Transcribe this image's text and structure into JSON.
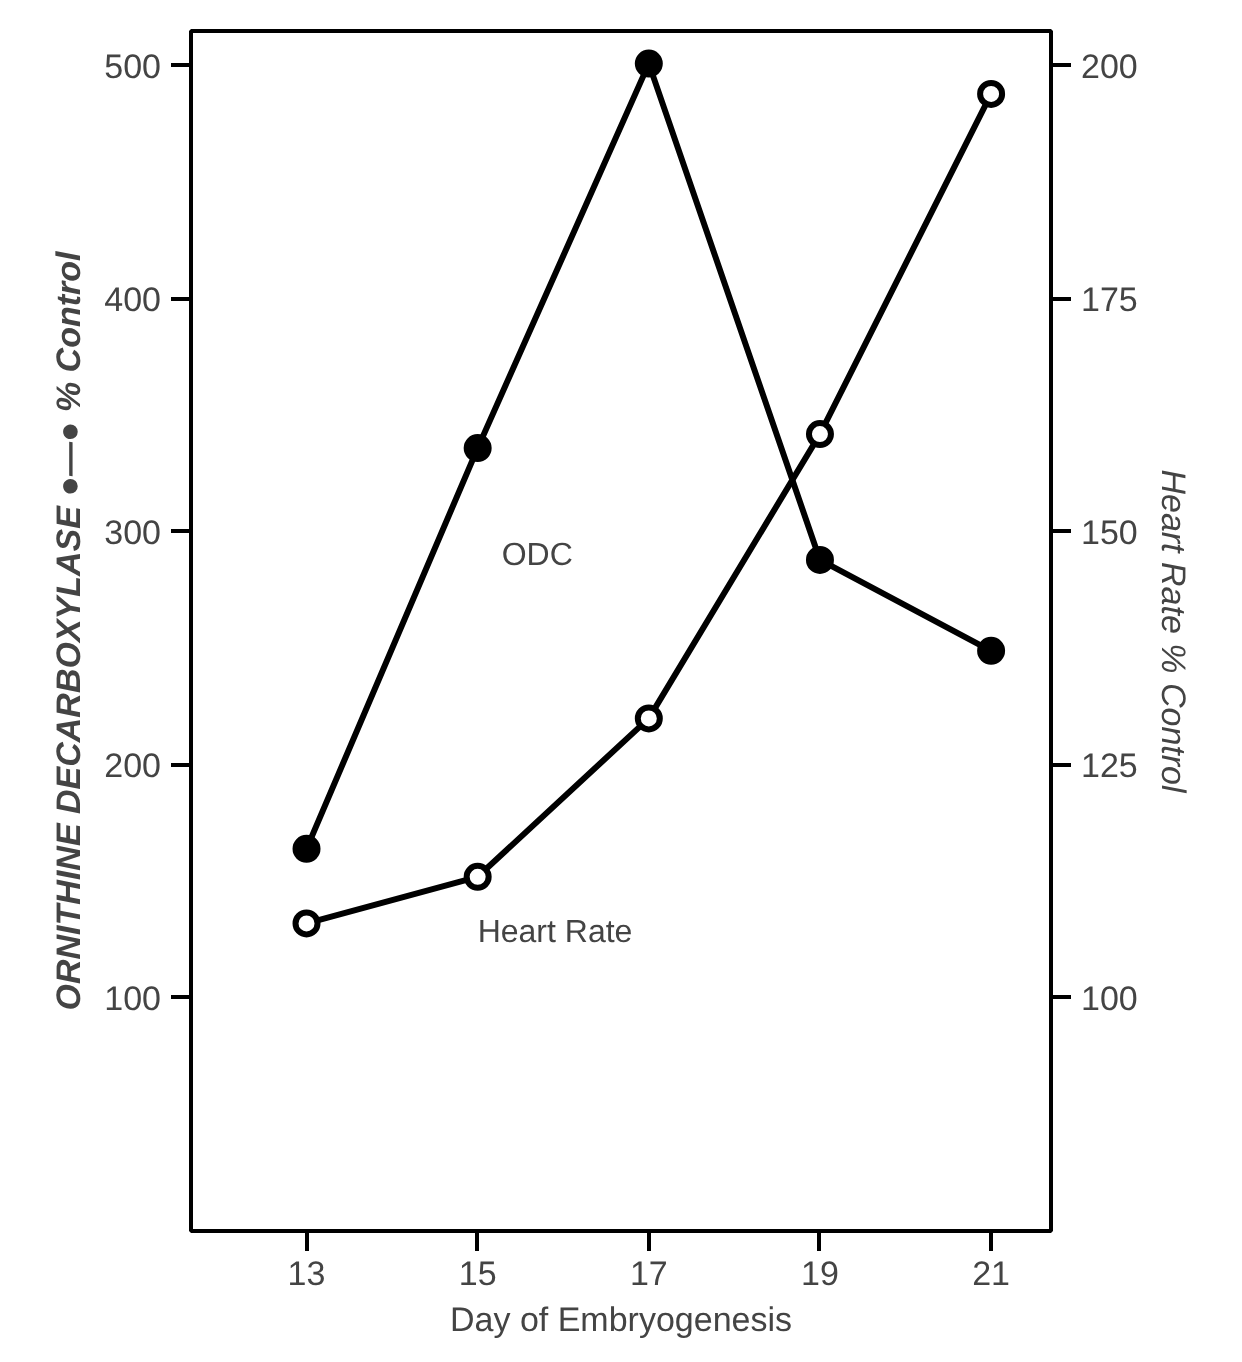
{
  "chart_data": {
    "type": "line",
    "xlabel": "Day of Embryogenesis",
    "ylabel": "ORNITHINE DECARBOXYLASE ●—● % Control",
    "y2label": "Heart Rate % Control",
    "x": [
      13,
      15,
      17,
      19,
      21
    ],
    "series": [
      {
        "name": "ODC",
        "color": "#000000",
        "values": [
          164,
          336,
          501,
          288,
          249
        ]
      },
      {
        "name": "Heart Rate",
        "color": "#000000",
        "values": [
          108,
          113,
          130,
          160.5,
          197
        ],
        "axis": "y2"
      }
    ],
    "xlim": [
      11.65,
      21.7
    ],
    "xticks": [
      13,
      15,
      17,
      19,
      21
    ],
    "ylim": [
      0,
      515
    ],
    "yticks": [
      100,
      200,
      300,
      400,
      500
    ],
    "y2lim": [
      75,
      203.75
    ],
    "y2ticks": [
      100,
      125,
      150,
      175,
      200
    ],
    "grid": false,
    "marker": "circle",
    "line_style": "solid"
  }
}
